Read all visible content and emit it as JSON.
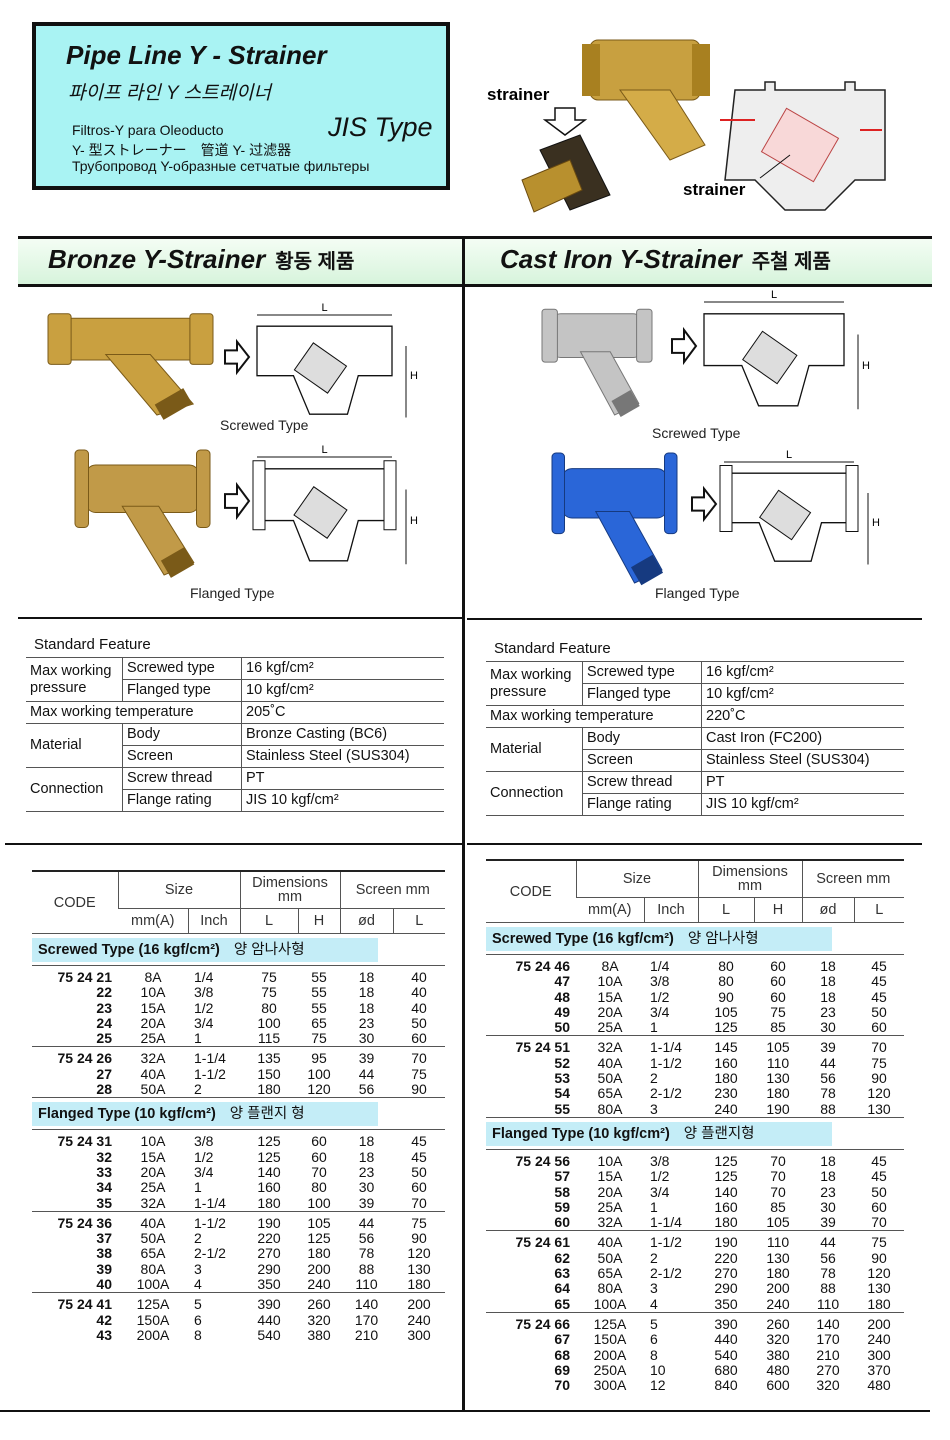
{
  "header": {
    "title": "Pipe Line Y - Strainer",
    "title_ko": "파이프 라인 Y 스트레이너",
    "subtitles": [
      "Filtros-Y para Oleoducto",
      "Y- 型ストレーナー　管道 Y- 过滤器",
      "Трубопровод Y-образные сетчатые фильтеры"
    ],
    "jis": "JIS Type"
  },
  "hero": {
    "labels": [
      "strainer",
      "strainer"
    ]
  },
  "columns": [
    {
      "heading": "Bronze Y-Strainer",
      "heading_ko": "황동 제품",
      "images": {
        "screwed": "Screwed Type",
        "flanged": "Flanged Type",
        "dim_labels": [
          "L",
          "H"
        ]
      },
      "features": {
        "title": "Standard Feature",
        "groups": [
          {
            "label": "Max working pressure",
            "rows": [
              [
                "Screwed type",
                "16 kgf/cm²"
              ],
              [
                "Flanged type",
                "10 kgf/cm²"
              ]
            ]
          },
          {
            "label": "Max working temperature",
            "value": "205˚C"
          },
          {
            "label": "Material",
            "rows": [
              [
                "Body",
                "Bronze Casting (BC6)"
              ],
              [
                "Screen",
                "Stainless Steel (SUS304)"
              ]
            ]
          },
          {
            "label": "Connection",
            "rows": [
              [
                "Screw thread",
                "PT"
              ],
              [
                "Flange rating",
                "JIS 10 kgf/cm²"
              ]
            ]
          }
        ]
      },
      "dimensions": {
        "headers": {
          "code": "CODE",
          "size": "Size",
          "dimensions": "Dimensions",
          "dimensions_unit": "mm",
          "screen": "Screen mm",
          "sub": [
            "mm(A)",
            "Inch",
            "L",
            "H",
            "ød",
            "L"
          ]
        },
        "sections": [
          {
            "type": "Screwed Type (16 kgf/cm²)",
            "type_ko": "양 암나사형",
            "groups": [
              {
                "prefix": "75 24",
                "rows": [
                  [
                    "21",
                    "8A",
                    "1/4",
                    "75",
                    "55",
                    "18",
                    "40"
                  ],
                  [
                    "22",
                    "10A",
                    "3/8",
                    "75",
                    "55",
                    "18",
                    "40"
                  ],
                  [
                    "23",
                    "15A",
                    "1/2",
                    "80",
                    "55",
                    "18",
                    "40"
                  ],
                  [
                    "24",
                    "20A",
                    "3/4",
                    "100",
                    "65",
                    "23",
                    "50"
                  ],
                  [
                    "25",
                    "25A",
                    "1",
                    "115",
                    "75",
                    "30",
                    "60"
                  ]
                ]
              },
              {
                "prefix": "75 24",
                "rows": [
                  [
                    "26",
                    "32A",
                    "1-1/4",
                    "135",
                    "95",
                    "39",
                    "70"
                  ],
                  [
                    "27",
                    "40A",
                    "1-1/2",
                    "150",
                    "100",
                    "44",
                    "75"
                  ],
                  [
                    "28",
                    "50A",
                    "2",
                    "180",
                    "120",
                    "56",
                    "90"
                  ]
                ]
              }
            ]
          },
          {
            "type": "Flanged Type (10 kgf/cm²)",
            "type_ko": "양 플랜지 형",
            "groups": [
              {
                "prefix": "75 24",
                "rows": [
                  [
                    "31",
                    "10A",
                    "3/8",
                    "125",
                    "60",
                    "18",
                    "45"
                  ],
                  [
                    "32",
                    "15A",
                    "1/2",
                    "125",
                    "60",
                    "18",
                    "45"
                  ],
                  [
                    "33",
                    "20A",
                    "3/4",
                    "140",
                    "70",
                    "23",
                    "50"
                  ],
                  [
                    "34",
                    "25A",
                    "1",
                    "160",
                    "80",
                    "30",
                    "60"
                  ],
                  [
                    "35",
                    "32A",
                    "1-1/4",
                    "180",
                    "100",
                    "39",
                    "70"
                  ]
                ]
              },
              {
                "prefix": "75 24",
                "rows": [
                  [
                    "36",
                    "40A",
                    "1-1/2",
                    "190",
                    "105",
                    "44",
                    "75"
                  ],
                  [
                    "37",
                    "50A",
                    "2",
                    "220",
                    "125",
                    "56",
                    "90"
                  ],
                  [
                    "38",
                    "65A",
                    "2-1/2",
                    "270",
                    "180",
                    "78",
                    "120"
                  ],
                  [
                    "39",
                    "80A",
                    "3",
                    "290",
                    "200",
                    "88",
                    "130"
                  ],
                  [
                    "40",
                    "100A",
                    "4",
                    "350",
                    "240",
                    "110",
                    "180"
                  ]
                ]
              },
              {
                "prefix": "75 24",
                "rows": [
                  [
                    "41",
                    "125A",
                    "5",
                    "390",
                    "260",
                    "140",
                    "200"
                  ],
                  [
                    "42",
                    "150A",
                    "6",
                    "440",
                    "320",
                    "170",
                    "240"
                  ],
                  [
                    "43",
                    "200A",
                    "8",
                    "540",
                    "380",
                    "210",
                    "300"
                  ]
                ]
              }
            ]
          }
        ]
      }
    },
    {
      "heading": "Cast Iron Y-Strainer",
      "heading_ko": "주철 제품",
      "images": {
        "screwed": "Screwed Type",
        "flanged": "Flanged Type",
        "dim_labels": [
          "L",
          "H"
        ]
      },
      "features": {
        "title": "Standard Feature",
        "groups": [
          {
            "label": "Max working pressure",
            "rows": [
              [
                "Screwed type",
                "16 kgf/cm²"
              ],
              [
                "Flanged type",
                "10 kgf/cm²"
              ]
            ]
          },
          {
            "label": "Max working temperature",
            "value": "220˚C"
          },
          {
            "label": "Material",
            "rows": [
              [
                "Body",
                "Cast Iron (FC200)"
              ],
              [
                "Screen",
                "Stainless Steel (SUS304)"
              ]
            ]
          },
          {
            "label": "Connection",
            "rows": [
              [
                "Screw thread",
                "PT"
              ],
              [
                "Flange rating",
                "JIS 10 kgf/cm²"
              ]
            ]
          }
        ]
      },
      "dimensions": {
        "headers": {
          "code": "CODE",
          "size": "Size",
          "dimensions": "Dimensions",
          "dimensions_unit": "mm",
          "screen": "Screen mm",
          "sub": [
            "mm(A)",
            "Inch",
            "L",
            "H",
            "ød",
            "L"
          ]
        },
        "sections": [
          {
            "type": "Screwed Type (16 kgf/cm²)",
            "type_ko": "양 암나사형",
            "groups": [
              {
                "prefix": "75 24",
                "rows": [
                  [
                    "46",
                    "8A",
                    "1/4",
                    "80",
                    "60",
                    "18",
                    "45"
                  ],
                  [
                    "47",
                    "10A",
                    "3/8",
                    "80",
                    "60",
                    "18",
                    "45"
                  ],
                  [
                    "48",
                    "15A",
                    "1/2",
                    "90",
                    "60",
                    "18",
                    "45"
                  ],
                  [
                    "49",
                    "20A",
                    "3/4",
                    "105",
                    "75",
                    "23",
                    "50"
                  ],
                  [
                    "50",
                    "25A",
                    "1",
                    "125",
                    "85",
                    "30",
                    "60"
                  ]
                ]
              },
              {
                "prefix": "75 24",
                "rows": [
                  [
                    "51",
                    "32A",
                    "1-1/4",
                    "145",
                    "105",
                    "39",
                    "70"
                  ],
                  [
                    "52",
                    "40A",
                    "1-1/2",
                    "160",
                    "110",
                    "44",
                    "75"
                  ],
                  [
                    "53",
                    "50A",
                    "2",
                    "180",
                    "130",
                    "56",
                    "90"
                  ],
                  [
                    "54",
                    "65A",
                    "2-1/2",
                    "230",
                    "180",
                    "78",
                    "120"
                  ],
                  [
                    "55",
                    "80A",
                    "3",
                    "240",
                    "190",
                    "88",
                    "130"
                  ]
                ]
              }
            ]
          },
          {
            "type": "Flanged Type (10 kgf/cm²)",
            "type_ko": "양 플랜지형",
            "groups": [
              {
                "prefix": "75 24",
                "rows": [
                  [
                    "56",
                    "10A",
                    "3/8",
                    "125",
                    "70",
                    "18",
                    "45"
                  ],
                  [
                    "57",
                    "15A",
                    "1/2",
                    "125",
                    "70",
                    "18",
                    "45"
                  ],
                  [
                    "58",
                    "20A",
                    "3/4",
                    "140",
                    "70",
                    "23",
                    "50"
                  ],
                  [
                    "59",
                    "25A",
                    "1",
                    "160",
                    "85",
                    "30",
                    "60"
                  ],
                  [
                    "60",
                    "32A",
                    "1-1/4",
                    "180",
                    "105",
                    "39",
                    "70"
                  ]
                ]
              },
              {
                "prefix": "75 24",
                "rows": [
                  [
                    "61",
                    "40A",
                    "1-1/2",
                    "190",
                    "110",
                    "44",
                    "75"
                  ],
                  [
                    "62",
                    "50A",
                    "2",
                    "220",
                    "130",
                    "56",
                    "90"
                  ],
                  [
                    "63",
                    "65A",
                    "2-1/2",
                    "270",
                    "180",
                    "78",
                    "120"
                  ],
                  [
                    "64",
                    "80A",
                    "3",
                    "290",
                    "200",
                    "88",
                    "130"
                  ],
                  [
                    "65",
                    "100A",
                    "4",
                    "350",
                    "240",
                    "110",
                    "180"
                  ]
                ]
              },
              {
                "prefix": "75 24",
                "rows": [
                  [
                    "66",
                    "125A",
                    "5",
                    "390",
                    "260",
                    "140",
                    "200"
                  ],
                  [
                    "67",
                    "150A",
                    "6",
                    "440",
                    "320",
                    "170",
                    "240"
                  ],
                  [
                    "68",
                    "200A",
                    "8",
                    "540",
                    "380",
                    "210",
                    "300"
                  ],
                  [
                    "69",
                    "250A",
                    "10",
                    "680",
                    "480",
                    "270",
                    "370"
                  ],
                  [
                    "70",
                    "300A",
                    "12",
                    "840",
                    "600",
                    "320",
                    "480"
                  ]
                ]
              }
            ]
          }
        ]
      }
    }
  ]
}
